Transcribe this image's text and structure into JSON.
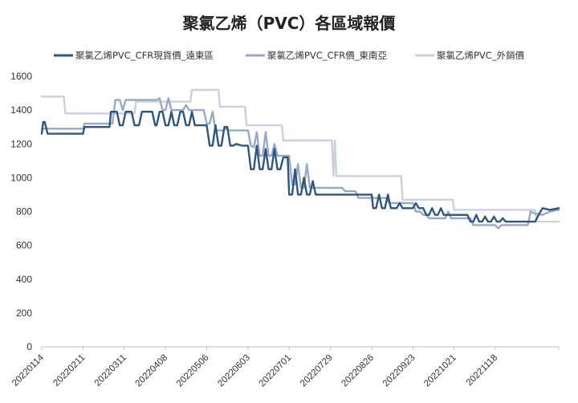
{
  "chart_data": {
    "type": "line",
    "title": "聚氯乙烯（PVC）各區域報價",
    "xlabel": "",
    "ylabel": "",
    "ylim": [
      0,
      1600
    ],
    "yticks": [
      0,
      200,
      400,
      600,
      800,
      1000,
      1200,
      1400,
      1600
    ],
    "x_tick_labels": [
      "20220114",
      "20220211",
      "20220311",
      "20220408",
      "20220506",
      "20220603",
      "20220701",
      "20220729",
      "20220826",
      "20220923",
      "20221021",
      "20221118"
    ],
    "x_start": "20220114",
    "x_end": "20221231",
    "grid": false,
    "legend_position": "top",
    "series": [
      {
        "name": "聚氯乙烯PVC_CFR現貨價_遠東區",
        "color": "#2e5682",
        "points": [
          [
            "20220114",
            1260
          ],
          [
            "20220115",
            1330
          ],
          [
            "20220116",
            1330
          ],
          [
            "20220118",
            1260
          ],
          [
            "20220211",
            1260
          ],
          [
            "20220212",
            1300
          ],
          [
            "20220301",
            1300
          ],
          [
            "20220302",
            1390
          ],
          [
            "20220306",
            1390
          ],
          [
            "20220308",
            1310
          ],
          [
            "20220310",
            1310
          ],
          [
            "20220312",
            1390
          ],
          [
            "20220316",
            1390
          ],
          [
            "20220318",
            1310
          ],
          [
            "20220321",
            1310
          ],
          [
            "20220323",
            1390
          ],
          [
            "20220330",
            1390
          ],
          [
            "20220401",
            1310
          ],
          [
            "20220402",
            1310
          ],
          [
            "20220404",
            1390
          ],
          [
            "20220406",
            1390
          ],
          [
            "20220408",
            1310
          ],
          [
            "20220410",
            1310
          ],
          [
            "20220412",
            1390
          ],
          [
            "20220414",
            1310
          ],
          [
            "20220416",
            1310
          ],
          [
            "20220418",
            1390
          ],
          [
            "20220420",
            1390
          ],
          [
            "20220422",
            1310
          ],
          [
            "20220424",
            1310
          ],
          [
            "20220426",
            1390
          ],
          [
            "20220428",
            1310
          ],
          [
            "20220506",
            1310
          ],
          [
            "20220508",
            1190
          ],
          [
            "20220510",
            1190
          ],
          [
            "20220512",
            1310
          ],
          [
            "20220514",
            1190
          ],
          [
            "20220516",
            1190
          ],
          [
            "20220518",
            1300
          ],
          [
            "20220520",
            1300
          ],
          [
            "20220522",
            1190
          ],
          [
            "20220524",
            1190
          ],
          [
            "20220526",
            1200
          ],
          [
            "20220530",
            1190
          ],
          [
            "20220603",
            1190
          ],
          [
            "20220605",
            1050
          ],
          [
            "20220607",
            1050
          ],
          [
            "20220609",
            1190
          ],
          [
            "20220611",
            1050
          ],
          [
            "20220613",
            1050
          ],
          [
            "20220615",
            1170
          ],
          [
            "20220617",
            1050
          ],
          [
            "20220619",
            1050
          ],
          [
            "20220621",
            1170
          ],
          [
            "20220623",
            1050
          ],
          [
            "20220625",
            1050
          ],
          [
            "20220627",
            1120
          ],
          [
            "20220630",
            1120
          ],
          [
            "20220701",
            900
          ],
          [
            "20220703",
            900
          ],
          [
            "20220705",
            1050
          ],
          [
            "20220707",
            900
          ],
          [
            "20220709",
            900
          ],
          [
            "20220711",
            1000
          ],
          [
            "20220713",
            900
          ],
          [
            "20220715",
            900
          ],
          [
            "20220717",
            980
          ],
          [
            "20220719",
            900
          ],
          [
            "20220826",
            900
          ],
          [
            "20220827",
            820
          ],
          [
            "20220829",
            820
          ],
          [
            "20220831",
            900
          ],
          [
            "20220902",
            820
          ],
          [
            "20220904",
            820
          ],
          [
            "20220906",
            900
          ],
          [
            "20220908",
            820
          ],
          [
            "20220912",
            820
          ],
          [
            "20220914",
            850
          ],
          [
            "20220916",
            820
          ],
          [
            "20220923",
            820
          ],
          [
            "20220925",
            850
          ],
          [
            "20220927",
            820
          ],
          [
            "20220930",
            820
          ],
          [
            "20221002",
            780
          ],
          [
            "20221004",
            780
          ],
          [
            "20221006",
            820
          ],
          [
            "20221008",
            780
          ],
          [
            "20221010",
            780
          ],
          [
            "20221012",
            820
          ],
          [
            "20221014",
            780
          ],
          [
            "20221030",
            780
          ],
          [
            "20221101",
            740
          ],
          [
            "20221103",
            740
          ],
          [
            "20221105",
            780
          ],
          [
            "20221107",
            740
          ],
          [
            "20221109",
            740
          ],
          [
            "20221111",
            770
          ],
          [
            "20221113",
            740
          ],
          [
            "20221115",
            740
          ],
          [
            "20221117",
            770
          ],
          [
            "20221119",
            740
          ],
          [
            "20221121",
            740
          ],
          [
            "20221123",
            760
          ],
          [
            "20221125",
            740
          ],
          [
            "20221210",
            740
          ],
          [
            "20221215",
            740
          ],
          [
            "20221218",
            790
          ],
          [
            "20221220",
            820
          ],
          [
            "20221225",
            810
          ],
          [
            "20221231",
            820
          ]
        ]
      },
      {
        "name": "聚氯乙烯PVC_CFR價_東南亞",
        "color": "#98a9c4",
        "points": [
          [
            "20220114",
            1290
          ],
          [
            "20220211",
            1290
          ],
          [
            "20220212",
            1320
          ],
          [
            "20220303",
            1320
          ],
          [
            "20220305",
            1460
          ],
          [
            "20220308",
            1460
          ],
          [
            "20220310",
            1400
          ],
          [
            "20220312",
            1460
          ],
          [
            "20220402",
            1460
          ],
          [
            "20220404",
            1470
          ],
          [
            "20220406",
            1400
          ],
          [
            "20220408",
            1400
          ],
          [
            "20220410",
            1470
          ],
          [
            "20220412",
            1400
          ],
          [
            "20220420",
            1400
          ],
          [
            "20220422",
            1430
          ],
          [
            "20220424",
            1400
          ],
          [
            "20220504",
            1400
          ],
          [
            "20220506",
            1320
          ],
          [
            "20220508",
            1320
          ],
          [
            "20220510",
            1390
          ],
          [
            "20220512",
            1280
          ],
          [
            "20220517",
            1280
          ],
          [
            "20220519",
            1290
          ],
          [
            "20220521",
            1280
          ],
          [
            "20220603",
            1280
          ],
          [
            "20220605",
            1190
          ],
          [
            "20220607",
            1180
          ],
          [
            "20220609",
            1270
          ],
          [
            "20220611",
            1130
          ],
          [
            "20220613",
            1130
          ],
          [
            "20220615",
            1270
          ],
          [
            "20220617",
            1130
          ],
          [
            "20220619",
            1130
          ],
          [
            "20220621",
            1200
          ],
          [
            "20220623",
            1130
          ],
          [
            "20220701",
            1130
          ],
          [
            "20220703",
            960
          ],
          [
            "20220705",
            960
          ],
          [
            "20220707",
            1080
          ],
          [
            "20220709",
            940
          ],
          [
            "20220711",
            940
          ],
          [
            "20220713",
            1080
          ],
          [
            "20220715",
            940
          ],
          [
            "20220806",
            940
          ],
          [
            "20220808",
            920
          ],
          [
            "20220815",
            920
          ],
          [
            "20220817",
            880
          ],
          [
            "20220826",
            880
          ],
          [
            "20220828",
            880
          ],
          [
            "20220905",
            880
          ],
          [
            "20220907",
            850
          ],
          [
            "20220923",
            850
          ],
          [
            "20220925",
            800
          ],
          [
            "20220928",
            800
          ],
          [
            "20220930",
            780
          ],
          [
            "20221002",
            780
          ],
          [
            "20221004",
            760
          ],
          [
            "20221015",
            760
          ],
          [
            "20221017",
            800
          ],
          [
            "20221019",
            760
          ],
          [
            "20221101",
            760
          ],
          [
            "20221103",
            720
          ],
          [
            "20221118",
            720
          ],
          [
            "20221120",
            700
          ],
          [
            "20221122",
            720
          ],
          [
            "20221210",
            720
          ],
          [
            "20221212",
            800
          ],
          [
            "20221214",
            790
          ],
          [
            "20221220",
            780
          ],
          [
            "20221225",
            800
          ],
          [
            "20221231",
            810
          ]
        ]
      },
      {
        "name": "聚氯乙烯PVC_外銷價",
        "color": "#c9d1dd",
        "points": [
          [
            "20220114",
            1480
          ],
          [
            "20220129",
            1480
          ],
          [
            "20220130",
            1380
          ],
          [
            "20220318",
            1380
          ],
          [
            "20220319",
            1450
          ],
          [
            "20220425",
            1450
          ],
          [
            "20220426",
            1520
          ],
          [
            "20220514",
            1520
          ],
          [
            "20220515",
            1420
          ],
          [
            "20220601",
            1420
          ],
          [
            "20220602",
            1310
          ],
          [
            "20220626",
            1310
          ],
          [
            "20220627",
            1220
          ],
          [
            "20220730",
            1220
          ],
          [
            "20220731",
            1010
          ],
          [
            "20220801",
            1220
          ],
          [
            "20220802",
            1010
          ],
          [
            "20220915",
            1010
          ],
          [
            "20220916",
            870
          ],
          [
            "20221020",
            870
          ],
          [
            "20221021",
            810
          ],
          [
            "20221215",
            810
          ],
          [
            "20221216",
            740
          ],
          [
            "20221231",
            740
          ]
        ]
      }
    ]
  }
}
